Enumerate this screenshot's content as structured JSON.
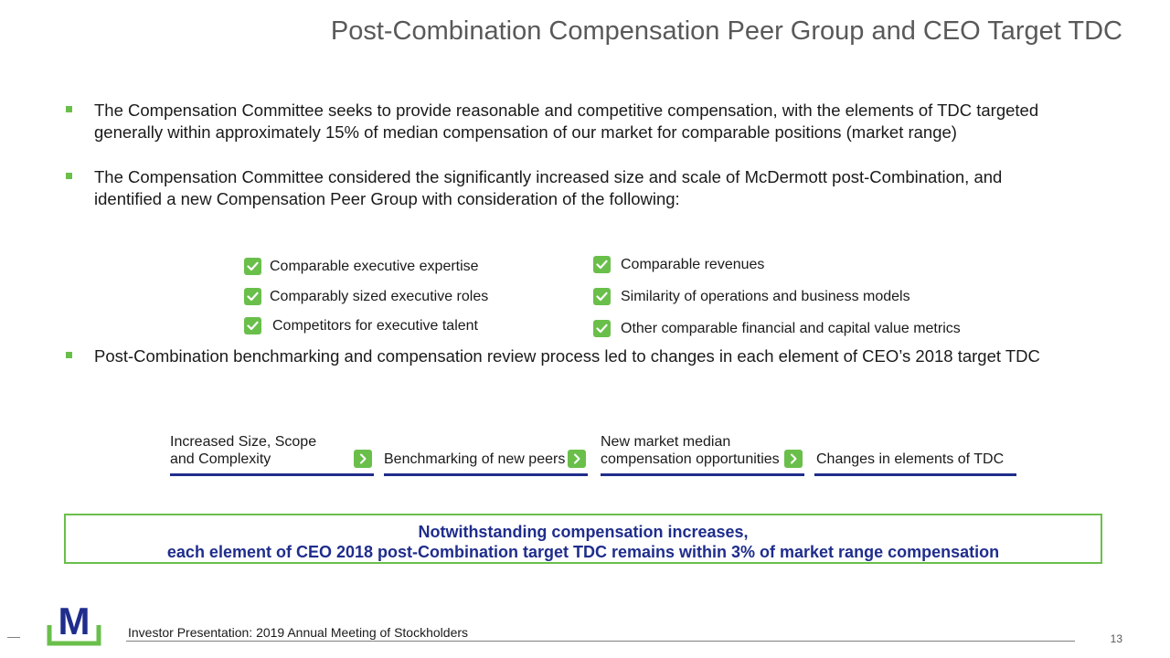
{
  "slide": {
    "title": "Post-Combination Compensation Peer Group and CEO Target TDC",
    "bullets": [
      {
        "line1": "The Compensation Committee seeks to provide reasonable and competitive compensation, with the elements of TDC targeted",
        "line2": "generally within approximately 15% of median compensation of our market for comparable positions (market range)"
      },
      {
        "line1": "The Compensation Committee considered the significantly increased size and scale of McDermott post-Combination, and",
        "line2": "identified a new Compensation Peer Group with consideration of the following:"
      },
      {
        "line1": "Post-Combination benchmarking and compensation review process led to changes in each element of CEO’s 2018 target TDC"
      }
    ],
    "criteria_left": [
      "Comparable executive expertise",
      "Comparably sized executive roles",
      "Competitors for executive talent"
    ],
    "criteria_right": [
      "Comparable revenues",
      "Similarity of operations and business models",
      "Other comparable financial and capital value metrics"
    ],
    "process_steps": [
      {
        "line1": "Increased Size, Scope",
        "line2": "and Complexity"
      },
      {
        "line1": "",
        "line2": "Benchmarking of new peers"
      },
      {
        "line1": "New market median",
        "line2": "compensation opportunities"
      },
      {
        "line1": "",
        "line2": "Changes in elements of TDC"
      }
    ],
    "callout": {
      "line1": "Notwithstanding compensation increases,",
      "line2": "each element of CEO 2018 post-Combination target TDC remains within 3% of market range compensation"
    },
    "footer": {
      "logo_letter": "M",
      "text": "Investor Presentation: 2019 Annual Meeting of Stockholders",
      "page_number": "13"
    },
    "colors": {
      "accent_green": "#6abf4b",
      "navy": "#1f2d8c",
      "title_gray": "#595959"
    },
    "icons": {
      "bullet": "square-bullet-icon",
      "check": "checkmark-icon",
      "arrow": "chevron-right-icon"
    }
  }
}
